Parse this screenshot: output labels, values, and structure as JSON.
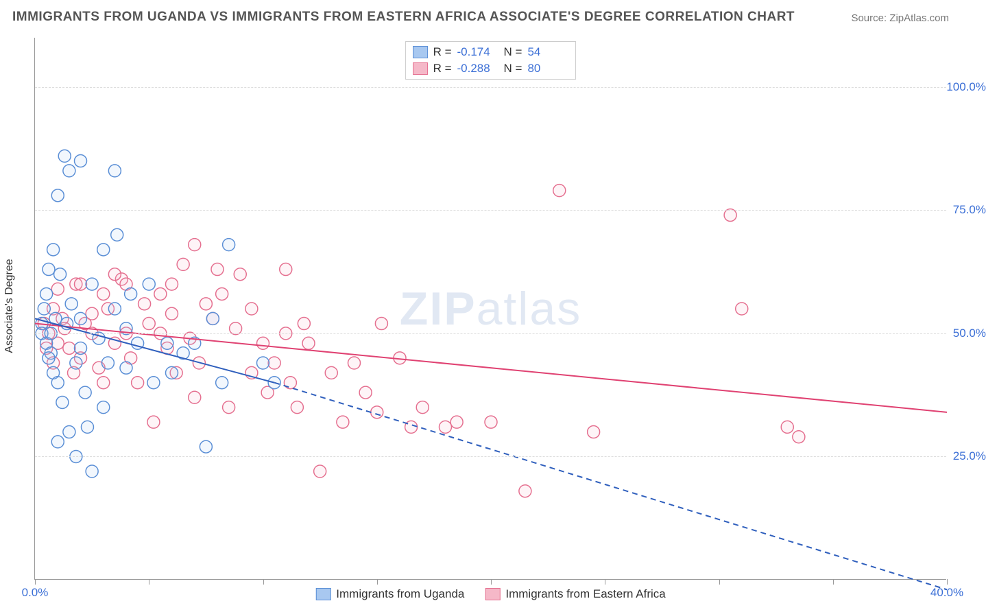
{
  "title": "IMMIGRANTS FROM UGANDA VS IMMIGRANTS FROM EASTERN AFRICA ASSOCIATE'S DEGREE CORRELATION CHART",
  "source": "Source: ZipAtlas.com",
  "ylabel": "Associate's Degree",
  "watermark_bold": "ZIP",
  "watermark_light": "atlas",
  "chart": {
    "type": "scatter",
    "background_color": "#ffffff",
    "grid_color": "#dddddd",
    "axis_color": "#999999",
    "xlim": [
      0,
      40
    ],
    "ylim": [
      0,
      110
    ],
    "xticks": [
      0,
      5,
      10,
      15,
      20,
      25,
      30,
      35,
      40
    ],
    "x_tick_labels": {
      "0": "0.0%",
      "40": "40.0%"
    },
    "y_gridlines": [
      25,
      50,
      75,
      100
    ],
    "y_tick_labels": {
      "25": "25.0%",
      "50": "50.0%",
      "75": "75.0%",
      "100": "100.0%"
    },
    "marker_radius": 9,
    "marker_stroke_width": 1.5,
    "marker_fill_opacity": 0.15,
    "label_fontsize": 17,
    "label_color": "#3b6fd6",
    "title_fontsize": 19,
    "title_color": "#555555"
  },
  "series": {
    "uganda": {
      "label": "Immigrants from Uganda",
      "color_fill": "#a8c8f0",
      "color_stroke": "#5b8fd6",
      "R_label": "R =",
      "R_value": "-0.174",
      "N_label": "N =",
      "N_value": "54",
      "trend": {
        "x1": 0,
        "y1": 53,
        "x2_solid": 10.5,
        "y2_solid": 40,
        "x2": 40,
        "y2": -2,
        "color": "#2f5fbd",
        "width": 2
      },
      "points": [
        [
          0.3,
          52
        ],
        [
          0.3,
          50
        ],
        [
          0.4,
          55
        ],
        [
          0.5,
          48
        ],
        [
          0.5,
          58
        ],
        [
          0.6,
          63
        ],
        [
          0.7,
          50
        ],
        [
          0.7,
          46
        ],
        [
          0.8,
          67
        ],
        [
          0.8,
          42
        ],
        [
          1.0,
          78
        ],
        [
          1.0,
          40
        ],
        [
          1.1,
          62
        ],
        [
          1.2,
          36
        ],
        [
          1.3,
          86
        ],
        [
          1.5,
          83
        ],
        [
          1.5,
          30
        ],
        [
          1.6,
          56
        ],
        [
          1.8,
          44
        ],
        [
          1.8,
          25
        ],
        [
          2.0,
          85
        ],
        [
          2.0,
          53
        ],
        [
          2.2,
          38
        ],
        [
          2.5,
          60
        ],
        [
          2.5,
          22
        ],
        [
          2.8,
          49
        ],
        [
          3.0,
          67
        ],
        [
          3.0,
          35
        ],
        [
          3.2,
          44
        ],
        [
          3.5,
          55
        ],
        [
          3.5,
          83
        ],
        [
          3.6,
          70
        ],
        [
          4.0,
          51
        ],
        [
          4.0,
          43
        ],
        [
          4.2,
          58
        ],
        [
          4.5,
          48
        ],
        [
          5.0,
          60
        ],
        [
          5.2,
          40
        ],
        [
          5.8,
          48
        ],
        [
          6.0,
          42
        ],
        [
          6.5,
          46
        ],
        [
          7.0,
          48
        ],
        [
          7.5,
          27
        ],
        [
          7.8,
          53
        ],
        [
          8.2,
          40
        ],
        [
          8.5,
          68
        ],
        [
          10.0,
          44
        ],
        [
          10.5,
          40
        ],
        [
          1.0,
          28
        ],
        [
          2.3,
          31
        ],
        [
          0.6,
          45
        ],
        [
          1.4,
          52
        ],
        [
          2.0,
          47
        ],
        [
          0.9,
          53
        ]
      ]
    },
    "eastern_africa": {
      "label": "Immigrants from Eastern Africa",
      "color_fill": "#f5b8c8",
      "color_stroke": "#e57090",
      "R_label": "R =",
      "R_value": "-0.288",
      "N_label": "N =",
      "N_value": "80",
      "trend": {
        "x1": 0,
        "y1": 52,
        "x2_solid": 40,
        "y2_solid": 34,
        "x2": 40,
        "y2": 34,
        "color": "#e04272",
        "width": 2
      },
      "points": [
        [
          0.4,
          52
        ],
        [
          0.6,
          50
        ],
        [
          0.8,
          55
        ],
        [
          1.0,
          48
        ],
        [
          1.2,
          53
        ],
        [
          1.5,
          47
        ],
        [
          1.8,
          60
        ],
        [
          2.0,
          45
        ],
        [
          2.2,
          52
        ],
        [
          2.5,
          50
        ],
        [
          2.8,
          43
        ],
        [
          3.0,
          58
        ],
        [
          3.2,
          55
        ],
        [
          3.5,
          48
        ],
        [
          3.8,
          61
        ],
        [
          4.0,
          50
        ],
        [
          4.2,
          45
        ],
        [
          4.5,
          40
        ],
        [
          5.0,
          52
        ],
        [
          5.2,
          32
        ],
        [
          5.5,
          58
        ],
        [
          5.8,
          47
        ],
        [
          6.0,
          54
        ],
        [
          6.2,
          42
        ],
        [
          6.5,
          64
        ],
        [
          6.8,
          49
        ],
        [
          7.0,
          68
        ],
        [
          7.2,
          44
        ],
        [
          7.5,
          56
        ],
        [
          7.8,
          53
        ],
        [
          8.0,
          63
        ],
        [
          8.2,
          58
        ],
        [
          8.5,
          35
        ],
        [
          8.8,
          51
        ],
        [
          9.0,
          62
        ],
        [
          9.5,
          42
        ],
        [
          10.0,
          48
        ],
        [
          10.2,
          38
        ],
        [
          10.5,
          44
        ],
        [
          11.0,
          50
        ],
        [
          11.0,
          63
        ],
        [
          11.2,
          40
        ],
        [
          11.5,
          35
        ],
        [
          11.8,
          52
        ],
        [
          12.5,
          22
        ],
        [
          13.0,
          42
        ],
        [
          13.5,
          32
        ],
        [
          14.0,
          44
        ],
        [
          14.5,
          38
        ],
        [
          15.0,
          34
        ],
        [
          15.2,
          52
        ],
        [
          16.0,
          45
        ],
        [
          16.5,
          31
        ],
        [
          17.0,
          35
        ],
        [
          18.0,
          31
        ],
        [
          18.5,
          32
        ],
        [
          20.0,
          32
        ],
        [
          21.5,
          18
        ],
        [
          23.0,
          79
        ],
        [
          24.5,
          30
        ],
        [
          30.5,
          74
        ],
        [
          31.0,
          55
        ],
        [
          33.0,
          31
        ],
        [
          33.5,
          29
        ],
        [
          1.0,
          59
        ],
        [
          2.0,
          60
        ],
        [
          3.5,
          62
        ],
        [
          4.8,
          56
        ],
        [
          0.5,
          47
        ],
        [
          0.8,
          44
        ],
        [
          1.3,
          51
        ],
        [
          2.5,
          54
        ],
        [
          4.0,
          60
        ],
        [
          6.0,
          60
        ],
        [
          7.0,
          37
        ],
        [
          9.5,
          55
        ],
        [
          12.0,
          48
        ],
        [
          1.7,
          42
        ],
        [
          3.0,
          40
        ],
        [
          5.5,
          50
        ]
      ]
    }
  }
}
